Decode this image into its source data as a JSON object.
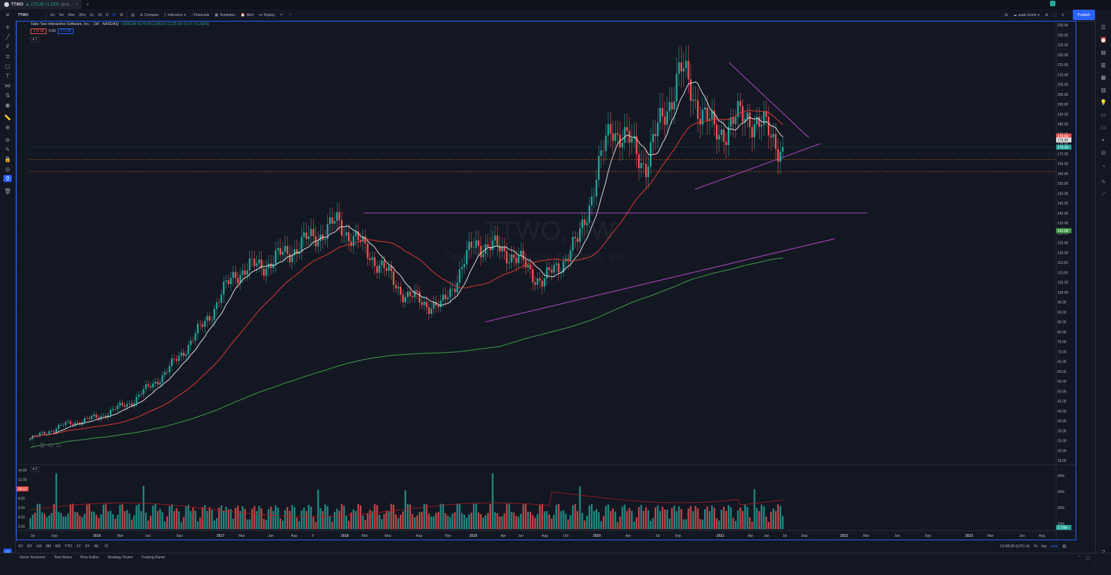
{
  "tab": {
    "symbol": "TTWO",
    "change_text": "▲ 173.29 +1.13%",
    "suffix": "quot…"
  },
  "toolbar": {
    "symbol": "TTWO",
    "intervals": [
      "1m",
      "5m",
      "30m",
      "30m",
      "1h",
      "2h",
      "D",
      "W",
      "M"
    ],
    "active_interval": "W",
    "compare": "Compare",
    "indicators": "Indicators",
    "financials": "Financials",
    "templates": "Templates",
    "alert": "Alert",
    "replay": "Replay",
    "layout_name": "quad charts",
    "publish": "Publish"
  },
  "legend": {
    "title": "Take-Two Interactive Software, Inc. · 1W · NASDAQ",
    "ohlc": "O169.94 H174.09 L166.61 C173.29 +2.77 (+1.62%)",
    "chip_sell": "173.08",
    "chip_mid": "0.00",
    "chip_buy": "173.08",
    "collapse": "7"
  },
  "watermark": {
    "symbol": "TTWO, 1W",
    "name": "Take-Two Interactive Software, Inc."
  },
  "price_axis": {
    "labels": [
      "235.00",
      "230.00",
      "225.00",
      "220.00",
      "215.00",
      "210.00",
      "205.00",
      "200.00",
      "195.00",
      "190.00",
      "185.00",
      "180.00",
      "175.00",
      "170.00",
      "165.00",
      "160.00",
      "155.00",
      "150.00",
      "145.00",
      "140.00",
      "135.00",
      "130.00",
      "125.00",
      "120.00",
      "115.00",
      "110.00",
      "105.00",
      "100.00",
      "95.00",
      "90.00",
      "85.00",
      "80.00",
      "75.00",
      "70.00",
      "65.00",
      "60.00",
      "55.00",
      "50.00",
      "45.00",
      "40.00",
      "35.00",
      "30.00",
      "25.00",
      "20.00",
      "15.00"
    ],
    "tag_red": "178.94",
    "tag_white": "176.90",
    "tag_teal": "173.29",
    "tag_green": "131.08"
  },
  "volume": {
    "axis_labels": [
      "14.00",
      "12.00",
      "10.17",
      "8.00",
      "6.00",
      "4.00",
      "2.00"
    ],
    "right_labels": [
      "40%",
      "30%",
      "20%",
      "10%"
    ],
    "tag_vol": "2.73M",
    "collapse": "2"
  },
  "time_axis": {
    "labels": [
      "Jul",
      "Sep",
      "2016",
      "Mar",
      "Jun",
      "Sep",
      "2017",
      "Mar",
      "Jun",
      "Aug",
      "9",
      "2018",
      "Mar",
      "May",
      "Aug",
      "Nov",
      "2019",
      "Apr",
      "Jun",
      "Aug",
      "Oct",
      "2020",
      "Apr",
      "Jul",
      "Sep",
      "2021",
      "Apr",
      "Jun",
      "Jul",
      "Sep",
      "2022",
      "Mar",
      "Jun",
      "Sep",
      "2023",
      "Mar",
      "Jun",
      "Aug"
    ]
  },
  "status": {
    "ranges": [
      "1D",
      "5D",
      "1M",
      "3M",
      "6M",
      "YTD",
      "1Y",
      "5Y",
      "All"
    ],
    "clock": "13:58:35 (UTC-4)",
    "pct": "%",
    "log": "log",
    "auto": "auto"
  },
  "bottom_tabs": [
    "Stock Screener",
    "Text Notes",
    "Pine Editor",
    "Strategy Tester",
    "Trading Panel"
  ],
  "colors": {
    "up": "#26a69a",
    "down": "#ef5350",
    "sma_white": "#e0e0e0",
    "sma_red": "#e53935",
    "sma_green": "#43a047",
    "trend": "#ab47bc",
    "accent": "#2962ff"
  },
  "chart_data": {
    "type": "line",
    "x": [
      "2015-07",
      "2016-01",
      "2016-06",
      "2017-01",
      "2017-06",
      "2017-09",
      "2018-01",
      "2018-03",
      "2018-06",
      "2018-09",
      "2018-11",
      "2019-01",
      "2019-04",
      "2019-08",
      "2019-11",
      "2020-02",
      "2020-04",
      "2020-07",
      "2020-10",
      "2021-01",
      "2021-03",
      "2021-05",
      "2021-07"
    ],
    "series": [
      {
        "values": [
          26,
          33,
          37,
          45,
          60,
          82,
          110,
          115,
          125,
          135,
          118,
          98,
          92,
          125,
          120,
          105,
          125,
          185,
          165,
          212,
          180,
          190,
          173.29
        ]
      }
    ],
    "ylim": [
      15,
      235
    ],
    "grid": true
  }
}
